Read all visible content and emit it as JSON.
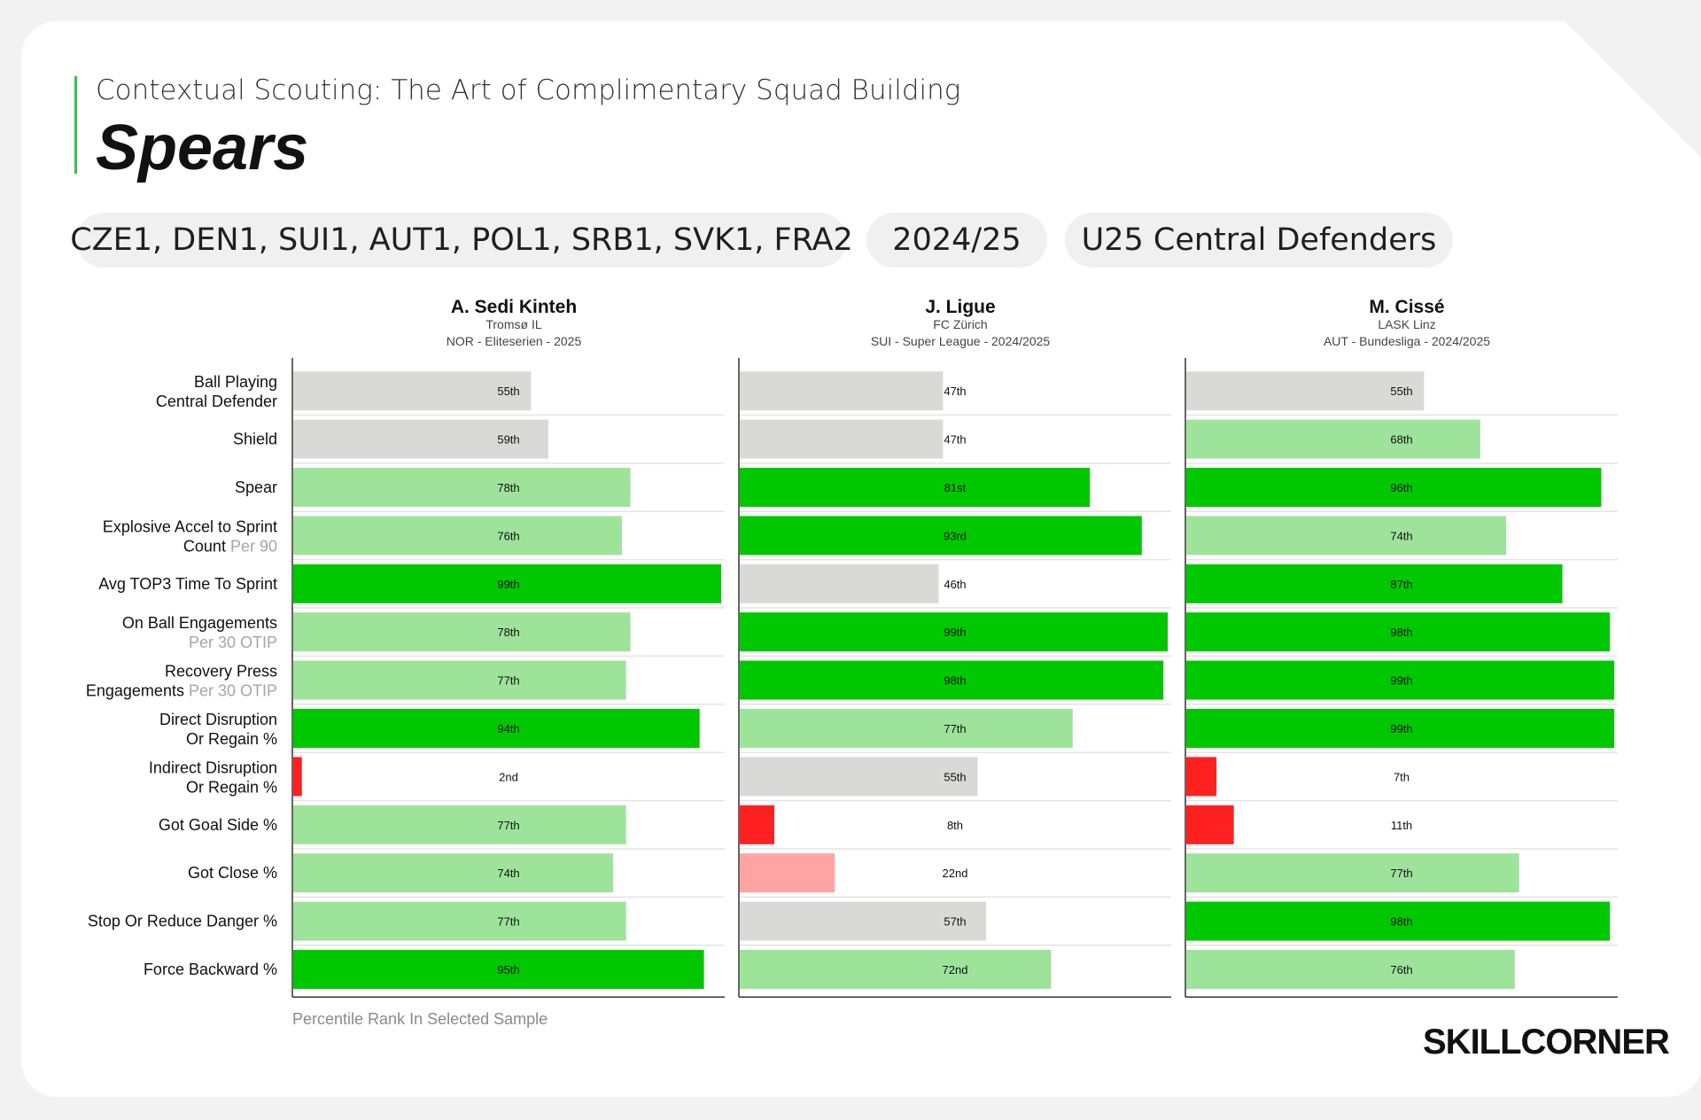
{
  "header": {
    "subtitle": "Contextual Scouting: The Art of Complimentary Squad Building",
    "title": "Spears",
    "filters": {
      "leagues": "CZE1, DEN1, SUI1, AUT1, POL1, SRB1, SVK1, FRA2",
      "season": "2024/25",
      "group": "U25 Central Defenders"
    }
  },
  "colors": {
    "neutral": "#d9d9d7",
    "good": "#9de49a",
    "elite": "#00c800",
    "poor": "#ffa3a3",
    "bad": "#ff2020",
    "axis": "#333333",
    "rule": "#e4e4e4"
  },
  "chart_data": {
    "type": "bar",
    "orientation": "horizontal",
    "xlim": [
      0,
      100
    ],
    "metrics": [
      {
        "label": "Ball Playing",
        "label2": "Central Defender",
        "suffix": ""
      },
      {
        "label": "Shield",
        "label2": "",
        "suffix": ""
      },
      {
        "label": "Spear",
        "label2": "",
        "suffix": ""
      },
      {
        "label": "Explosive Accel to Sprint",
        "label2": "Count",
        "suffix": "Per 90"
      },
      {
        "label": "Avg TOP3 Time To Sprint",
        "label2": "",
        "suffix": ""
      },
      {
        "label": "On Ball Engagements",
        "label2": "",
        "suffix": "Per 30 OTIP"
      },
      {
        "label": "Recovery Press",
        "label2": "Engagements",
        "suffix": "Per 30 OTIP"
      },
      {
        "label": "Direct Disruption",
        "label2": "Or Regain %",
        "suffix": ""
      },
      {
        "label": "Indirect Disruption",
        "label2": "Or Regain %",
        "suffix": ""
      },
      {
        "label": "Got Goal Side %",
        "label2": "",
        "suffix": ""
      },
      {
        "label": "Got Close %",
        "label2": "",
        "suffix": ""
      },
      {
        "label": "Stop Or Reduce Danger %",
        "label2": "",
        "suffix": ""
      },
      {
        "label": "Force Backward %",
        "label2": "",
        "suffix": ""
      }
    ],
    "players": [
      {
        "name": "A. Sedi Kinteh",
        "club": "Tromsø IL",
        "league": "NOR - Eliteserien - 2025",
        "values": [
          55,
          59,
          78,
          76,
          99,
          78,
          77,
          94,
          2,
          77,
          74,
          77,
          95
        ],
        "labels": [
          "55th",
          "59th",
          "78th",
          "76th",
          "99th",
          "78th",
          "77th",
          "94th",
          "2nd",
          "77th",
          "74th",
          "77th",
          "95th"
        ]
      },
      {
        "name": "J. Ligue",
        "club": "FC Zürich",
        "league": "SUI - Super League - 2024/2025",
        "values": [
          47,
          47,
          81,
          93,
          46,
          99,
          98,
          77,
          55,
          8,
          22,
          57,
          72
        ],
        "labels": [
          "47th",
          "47th",
          "81st",
          "93rd",
          "46th",
          "99th",
          "98th",
          "77th",
          "55th",
          "8th",
          "22nd",
          "57th",
          "72nd"
        ]
      },
      {
        "name": "M. Cissé",
        "club": "LASK Linz",
        "league": "AUT - Bundesliga - 2024/2025",
        "values": [
          55,
          68,
          96,
          74,
          87,
          98,
          99,
          99,
          7,
          11,
          77,
          98,
          76
        ],
        "labels": [
          "55th",
          "68th",
          "96th",
          "74th",
          "87th",
          "98th",
          "99th",
          "99th",
          "7th",
          "11th",
          "77th",
          "98th",
          "76th"
        ]
      }
    ],
    "xlabel": "Percentile Rank In Selected Sample"
  },
  "brand": {
    "logo_text": "SKILLCORNER"
  }
}
